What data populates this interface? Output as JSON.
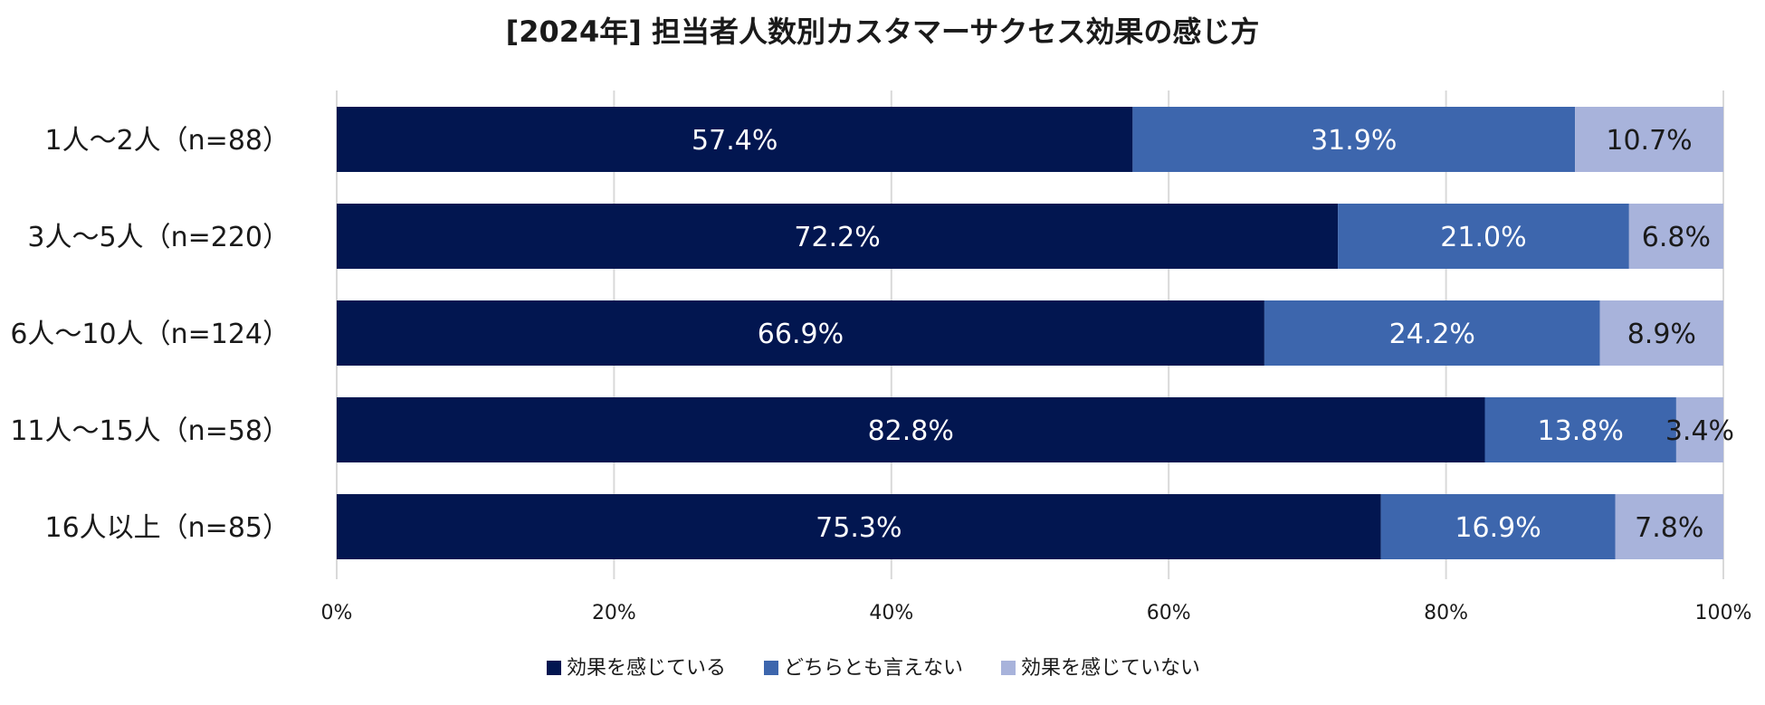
{
  "chart_data": {
    "type": "bar",
    "orientation": "horizontal",
    "stacked": true,
    "title": "[2024年] 担当者人数別カスタマーサクセス効果の感じ方",
    "xlabel": "",
    "ylabel": "",
    "xlim": [
      0,
      100
    ],
    "x_ticks": [
      "0%",
      "20%",
      "40%",
      "60%",
      "80%",
      "100%"
    ],
    "grid": true,
    "legend_position": "bottom",
    "categories": [
      "1人～2人（n=88）",
      "3人～5人（n=220）",
      "6人～10人（n=124）",
      "11人～15人（n=58）",
      "16人以上（n=85）"
    ],
    "series": [
      {
        "name": "効果を感じている",
        "color": "#021650",
        "label_color": "#ffffff",
        "values": [
          57.4,
          72.2,
          66.9,
          82.8,
          75.3
        ]
      },
      {
        "name": "どちらとも言えない",
        "color": "#3d66ad",
        "label_color": "#ffffff",
        "values": [
          31.9,
          21.0,
          24.2,
          13.8,
          16.9
        ]
      },
      {
        "name": "効果を感じていない",
        "color": "#a8b3db",
        "label_color": "#1a1a1a",
        "values": [
          10.7,
          6.8,
          8.9,
          3.4,
          7.8
        ]
      }
    ]
  }
}
